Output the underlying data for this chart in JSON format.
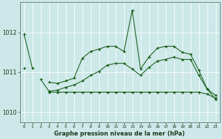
{
  "xlabel": "Graphe pression niveau de la mer (hPa)",
  "x_values": [
    0,
    1,
    2,
    3,
    4,
    5,
    6,
    7,
    8,
    9,
    10,
    11,
    12,
    13,
    14,
    15,
    16,
    17,
    18,
    19,
    20,
    21,
    22,
    23
  ],
  "x_labels": [
    "0",
    "1",
    "2",
    "3",
    "4",
    "5",
    "6",
    "7",
    "8",
    "9",
    "10",
    "11",
    "12",
    "13",
    "14",
    "15",
    "16",
    "17",
    "18",
    "19",
    "20",
    "21",
    "22",
    "23"
  ],
  "ylim": [
    1009.75,
    1012.75
  ],
  "yticks": [
    1010,
    1011,
    1012
  ],
  "line_color": "#1a5e1a",
  "bg_color": "#cce8e8",
  "grid_color": "#ffffff",
  "top_line": [
    1011.95,
    1011.1,
    null,
    1010.75,
    1010.72,
    1010.78,
    1010.85,
    1011.35,
    1011.52,
    1011.58,
    1011.65,
    1011.65,
    1011.52,
    1012.55,
    1011.08,
    1011.38,
    1011.6,
    1011.65,
    1011.65,
    1011.5,
    1011.45,
    1011.05,
    1010.58,
    1010.42
  ],
  "mid_line": [
    1011.1,
    null,
    1010.82,
    1010.52,
    1010.55,
    1010.62,
    1010.68,
    1010.78,
    1010.92,
    1011.02,
    1011.18,
    1011.22,
    1011.22,
    1011.08,
    1010.92,
    1011.12,
    1011.28,
    1011.32,
    1011.38,
    1011.32,
    1011.32,
    1010.92,
    1010.58,
    1010.32
  ],
  "bot_line": [
    null,
    null,
    null,
    1010.5,
    1010.5,
    1010.5,
    1010.5,
    1010.5,
    1010.5,
    1010.5,
    1010.5,
    1010.5,
    1010.5,
    1010.5,
    1010.5,
    1010.5,
    1010.5,
    1010.5,
    1010.5,
    1010.5,
    1010.5,
    1010.5,
    1010.45,
    1010.35
  ]
}
